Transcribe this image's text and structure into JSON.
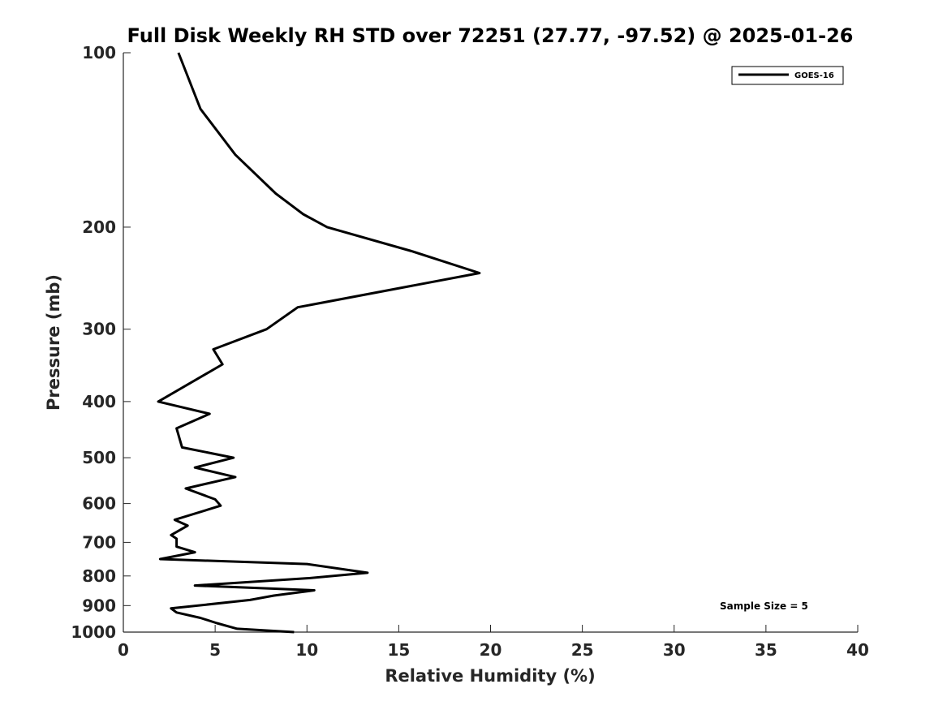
{
  "chart_data": {
    "type": "line",
    "title": "Full Disk Weekly RH STD over 72251 (27.77, -97.52) @ 2025-01-26",
    "xlabel": "Relative Humidity (%)",
    "ylabel": "Pressure (mb)",
    "xlim": [
      0,
      40
    ],
    "ylim": [
      100,
      1000
    ],
    "y_scale": "log",
    "y_reversed": true,
    "x_ticks": [
      "0",
      "5",
      "10",
      "15",
      "20",
      "25",
      "30",
      "35",
      "40"
    ],
    "y_ticks": [
      "100",
      "200",
      "300",
      "400",
      "500",
      "600",
      "700",
      "800",
      "900",
      "1000"
    ],
    "grid": false,
    "legend": {
      "placement": "top-right",
      "entries": [
        "GOES-16"
      ]
    },
    "annotation": "Sample Size = 5",
    "series": [
      {
        "name": "GOES-16",
        "color": "#000000",
        "points": [
          [
            3.0,
            100
          ],
          [
            4.2,
            125
          ],
          [
            6.1,
            150
          ],
          [
            8.3,
            175
          ],
          [
            9.8,
            190
          ],
          [
            11.1,
            200
          ],
          [
            15.7,
            220
          ],
          [
            19.4,
            240
          ],
          [
            9.5,
            275
          ],
          [
            7.8,
            300
          ],
          [
            4.9,
            325
          ],
          [
            5.4,
            345
          ],
          [
            1.9,
            400
          ],
          [
            4.7,
            420
          ],
          [
            2.9,
            445
          ],
          [
            3.2,
            480
          ],
          [
            6.0,
            500
          ],
          [
            3.9,
            520
          ],
          [
            6.1,
            540
          ],
          [
            3.4,
            565
          ],
          [
            5.0,
            590
          ],
          [
            5.3,
            605
          ],
          [
            2.8,
            640
          ],
          [
            3.5,
            655
          ],
          [
            2.6,
            680
          ],
          [
            2.9,
            690
          ],
          [
            2.9,
            712
          ],
          [
            3.9,
            728
          ],
          [
            2.0,
            748
          ],
          [
            10.0,
            763
          ],
          [
            13.3,
            790
          ],
          [
            10.1,
            807
          ],
          [
            3.9,
            831
          ],
          [
            10.4,
            847
          ],
          [
            8.2,
            865
          ],
          [
            6.9,
            880
          ],
          [
            2.6,
            910
          ],
          [
            2.9,
            925
          ],
          [
            4.2,
            945
          ],
          [
            5.1,
            965
          ],
          [
            6.2,
            987
          ],
          [
            9.3,
            1000
          ]
        ]
      }
    ]
  }
}
